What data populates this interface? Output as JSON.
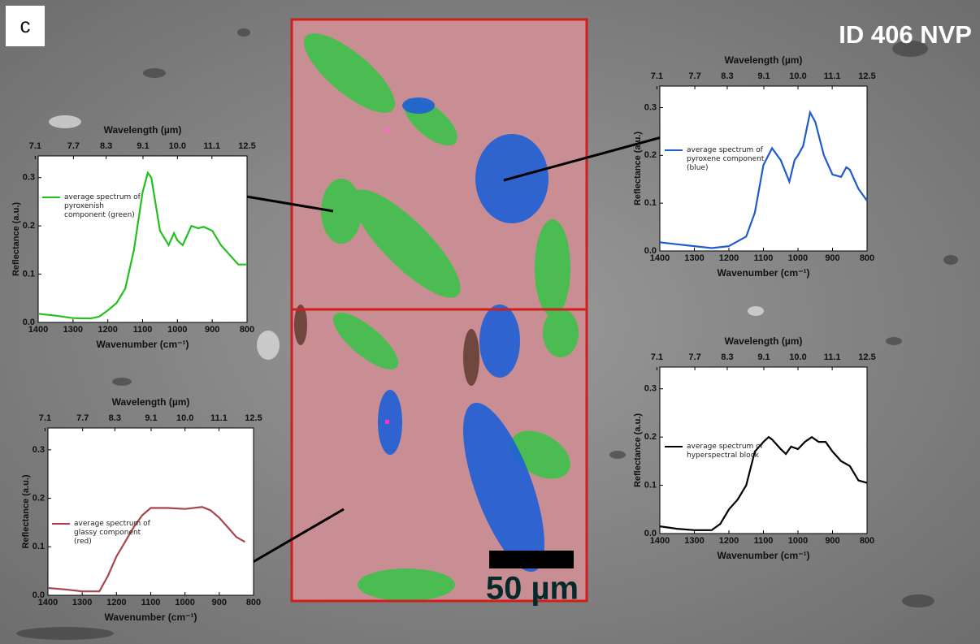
{
  "panel_label": "c",
  "sample_id": "ID 406 NVP",
  "scale_bar": "50 µm",
  "chart_data": [
    {
      "type": "line",
      "x_top_label": "Wavelength (µm)",
      "xlabel": "Wavenumber (cm⁻¹)",
      "ylabel": "Reflectance (a.u.)",
      "x": [
        1400,
        1350,
        1300,
        1250,
        1225,
        1200,
        1175,
        1150,
        1125,
        1100,
        1085,
        1075,
        1050,
        1025,
        1010,
        1000,
        985,
        960,
        940,
        925,
        900,
        875,
        850,
        825,
        800
      ],
      "series": [
        {
          "name": "average spectrum of pyroxenish component (green)",
          "color": "#22c01e",
          "values": [
            0.018,
            0.014,
            0.009,
            0.008,
            0.012,
            0.025,
            0.04,
            0.07,
            0.15,
            0.27,
            0.31,
            0.3,
            0.19,
            0.16,
            0.185,
            0.17,
            0.16,
            0.2,
            0.195,
            0.198,
            0.19,
            0.16,
            0.14,
            0.12,
            0.12
          ]
        }
      ],
      "xlim": [
        1400,
        800
      ],
      "xticks": [
        1400,
        1300,
        1200,
        1100,
        1000,
        900,
        800
      ],
      "x2ticks": [
        7.1,
        7.7,
        8.3,
        9.1,
        {
          "value": 10,
          "label": "10.0"
        },
        11.1,
        12.5
      ],
      "ylim": [
        0,
        0.345
      ],
      "yticks": [
        {
          "value": 0,
          "label": "0.0"
        },
        0.1,
        0.2,
        0.3
      ]
    },
    {
      "type": "line",
      "x_top_label": "Wavelength (µm)",
      "xlabel": "Wavenumber (cm⁻¹)",
      "ylabel": "Reflectance (a.u.)",
      "x": [
        1400,
        1350,
        1300,
        1250,
        1200,
        1150,
        1125,
        1100,
        1075,
        1050,
        1025,
        1010,
        1000,
        985,
        965,
        950,
        925,
        900,
        875,
        860,
        850,
        825,
        800
      ],
      "series": [
        {
          "name": "average spectrum of pyroxene component (blue)",
          "color": "#1d5cc9",
          "values": [
            0.018,
            0.014,
            0.01,
            0.006,
            0.01,
            0.03,
            0.08,
            0.18,
            0.215,
            0.19,
            0.145,
            0.19,
            0.2,
            0.22,
            0.29,
            0.27,
            0.2,
            0.16,
            0.155,
            0.175,
            0.17,
            0.13,
            0.105
          ]
        }
      ],
      "xlim": [
        1400,
        800
      ],
      "xticks": [
        1400,
        1300,
        1200,
        1100,
        1000,
        900,
        800
      ],
      "x2ticks": [
        7.1,
        7.7,
        8.3,
        9.1,
        {
          "value": 10,
          "label": "10.0"
        },
        11.1,
        12.5
      ],
      "ylim": [
        0,
        0.345
      ],
      "yticks": [
        {
          "value": 0,
          "label": "0.0"
        },
        0.1,
        0.2,
        0.3
      ]
    },
    {
      "type": "line",
      "x_top_label": "Wavelength (µm)",
      "xlabel": "Wavenumber (cm⁻¹)",
      "ylabel": "Reflectance (a.u.)",
      "x": [
        1400,
        1350,
        1300,
        1250,
        1225,
        1200,
        1175,
        1150,
        1125,
        1100,
        1050,
        1000,
        950,
        925,
        900,
        875,
        850,
        825
      ],
      "series": [
        {
          "name": "average spectrum of glassy component (red)",
          "color": "#a8454c",
          "values": [
            0.015,
            0.012,
            0.008,
            0.008,
            0.04,
            0.08,
            0.11,
            0.14,
            0.165,
            0.18,
            0.18,
            0.178,
            0.182,
            0.175,
            0.16,
            0.14,
            0.12,
            0.11
          ]
        }
      ],
      "xlim": [
        1400,
        800
      ],
      "xticks": [
        1400,
        1300,
        1200,
        1100,
        1000,
        900,
        800
      ],
      "x2ticks": [
        7.1,
        7.7,
        8.3,
        9.1,
        {
          "value": 10,
          "label": "10.0"
        },
        11.1,
        12.5
      ],
      "ylim": [
        0,
        0.345
      ],
      "yticks": [
        {
          "value": 0,
          "label": "0.0"
        },
        0.1,
        0.2,
        0.3
      ]
    },
    {
      "type": "line",
      "x_top_label": "Wavelength (µm)",
      "xlabel": "Wavenumber (cm⁻¹)",
      "ylabel": "Reflectance (a.u.)",
      "x": [
        1400,
        1350,
        1300,
        1250,
        1225,
        1200,
        1175,
        1150,
        1125,
        1100,
        1085,
        1075,
        1050,
        1035,
        1020,
        1000,
        980,
        960,
        940,
        920,
        900,
        875,
        850,
        825,
        800
      ],
      "series": [
        {
          "name": "average spectrum of hyperspectral block",
          "color": "#000000",
          "values": [
            0.015,
            0.01,
            0.007,
            0.007,
            0.02,
            0.05,
            0.07,
            0.1,
            0.17,
            0.19,
            0.2,
            0.195,
            0.175,
            0.165,
            0.18,
            0.175,
            0.19,
            0.2,
            0.19,
            0.19,
            0.17,
            0.15,
            0.14,
            0.11,
            0.105
          ]
        }
      ],
      "xlim": [
        1400,
        800
      ],
      "xticks": [
        1400,
        1300,
        1200,
        1100,
        1000,
        900,
        800
      ],
      "x2ticks": [
        7.1,
        7.7,
        8.3,
        9.1,
        {
          "value": 10,
          "label": "10.0"
        },
        11.1,
        12.5
      ],
      "ylim": [
        0,
        0.345
      ],
      "yticks": [
        {
          "value": 0,
          "label": "0.0"
        },
        0.1,
        0.2,
        0.3
      ]
    }
  ]
}
